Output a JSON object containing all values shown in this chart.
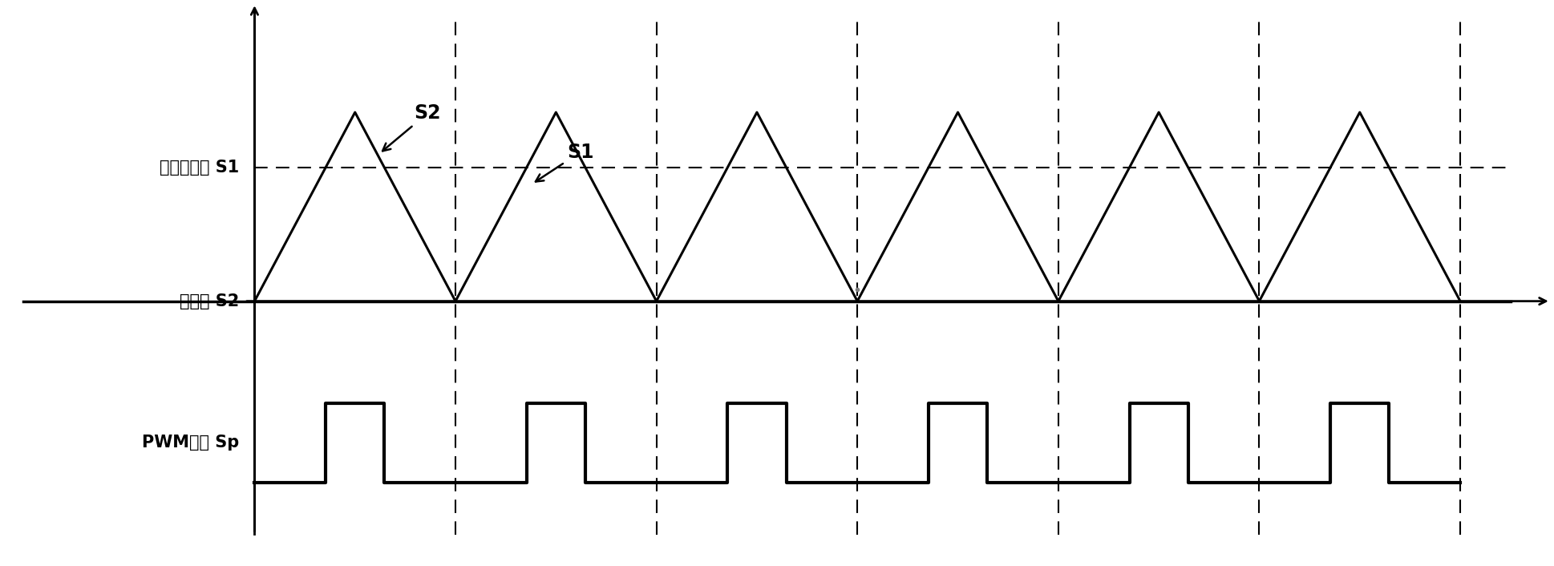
{
  "figsize": [
    19.38,
    7.06
  ],
  "dpi": 100,
  "bg_color": "#ffffff",
  "triangle_color": "#000000",
  "s1_line_color": "#000000",
  "s2_line_color": "#000000",
  "pwm_color": "#000000",
  "vline_color": "#000000",
  "axis_color": "#000000",
  "triangle_lw": 2.2,
  "s1_lw": 1.5,
  "s2_lw": 2.5,
  "pwm_lw": 3.0,
  "vline_lw": 1.5,
  "axis_lw": 2.0,
  "num_periods": 6,
  "period": 2.0,
  "triangle_min": -0.3,
  "triangle_max": 1.0,
  "s1_level": 0.62,
  "s2_level": -0.3,
  "pwm_low": -1.55,
  "pwm_high": -1.0,
  "s1_threshold": 0.62,
  "x_origin": 0.3,
  "xlim": [
    -2.2,
    13.2
  ],
  "ylim": [
    -2.1,
    1.75
  ],
  "label_s1": "比较基准値 S1",
  "label_s2": "计数値 S2",
  "label_pwm": "PWM信号 Sp",
  "annot_s2": "S2",
  "annot_s1": "S1",
  "label_fontsize": 15,
  "annot_fontsize": 17,
  "vline_positions": [
    2.3,
    4.3,
    6.3,
    8.3,
    10.3,
    12.3
  ]
}
